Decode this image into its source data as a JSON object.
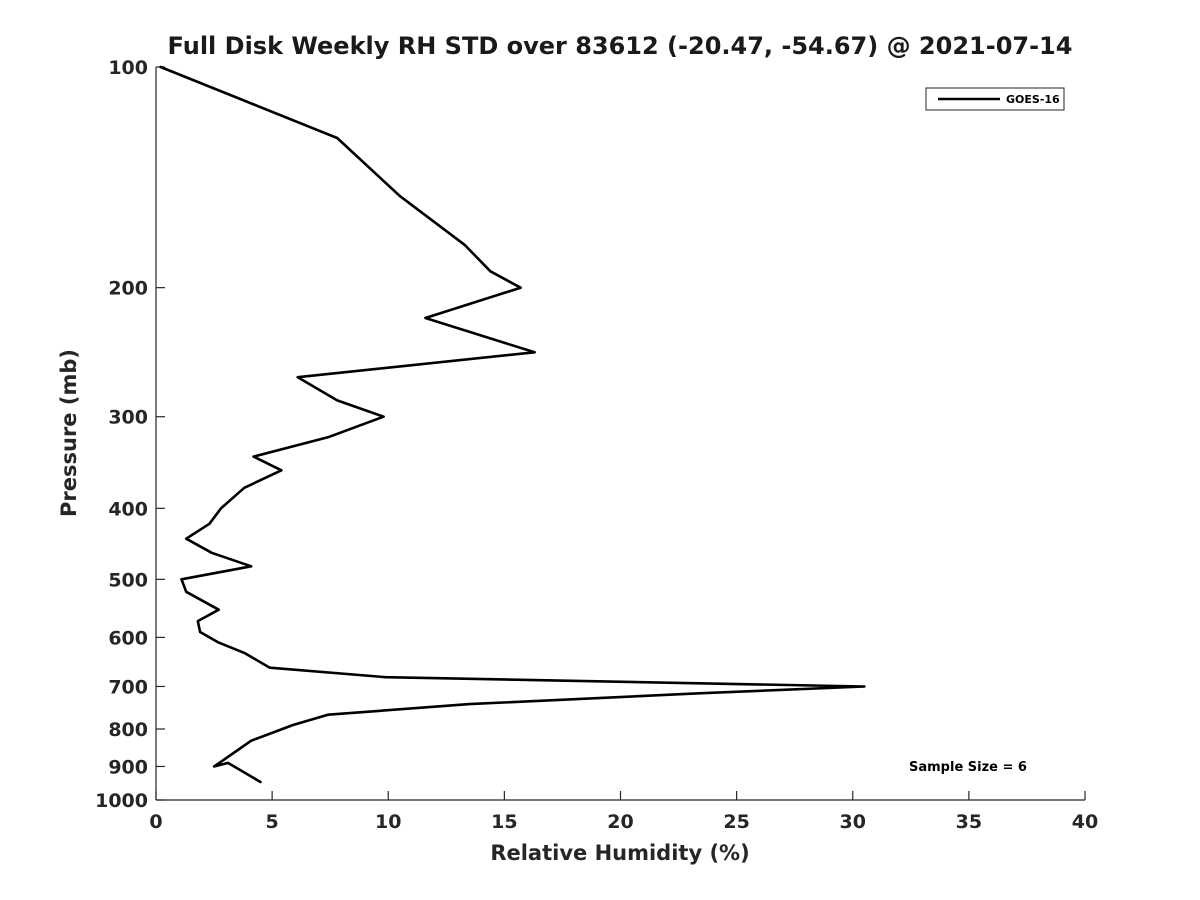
{
  "chart_data": {
    "type": "line",
    "title": "Full Disk Weekly RH STD over 83612 (-20.47, -54.67) @ 2021-07-14",
    "xlabel": "Relative Humidity (%)",
    "ylabel": "Pressure (mb)",
    "xlim": [
      0,
      40
    ],
    "ylim": [
      100,
      1000
    ],
    "y_scale": "log",
    "y_reversed": true,
    "grid": false,
    "x_ticks": [
      0,
      5,
      10,
      15,
      20,
      25,
      30,
      35,
      40
    ],
    "y_ticks": [
      100,
      200,
      300,
      400,
      500,
      600,
      700,
      800,
      900,
      1000
    ],
    "legend": {
      "placement": "top-right",
      "entries": [
        "GOES-16"
      ]
    },
    "annotation": "Sample Size = 6",
    "series": [
      {
        "name": "GOES-16",
        "color": "#000000",
        "x": [
          0.2,
          7.8,
          10.5,
          13.3,
          14.4,
          15.7,
          11.6,
          16.3,
          6.1,
          7.8,
          9.8,
          7.4,
          4.2,
          5.4,
          3.8,
          2.8,
          2.3,
          1.3,
          2.4,
          4.1,
          1.1,
          1.3,
          2.7,
          1.8,
          1.9,
          2.7,
          3.8,
          4.9,
          9.9,
          30.5,
          23.5,
          13.5,
          7.4,
          5.9,
          5.0,
          4.1,
          3.4,
          2.5,
          3.1,
          4.5
        ],
        "y": [
          100,
          125,
          150,
          175,
          190,
          200,
          220,
          245,
          265,
          285,
          300,
          320,
          340,
          355,
          375,
          400,
          420,
          440,
          460,
          480,
          500,
          520,
          550,
          570,
          590,
          610,
          630,
          660,
          680,
          700,
          715,
          740,
          765,
          790,
          810,
          830,
          860,
          900,
          890,
          945
        ]
      }
    ]
  }
}
